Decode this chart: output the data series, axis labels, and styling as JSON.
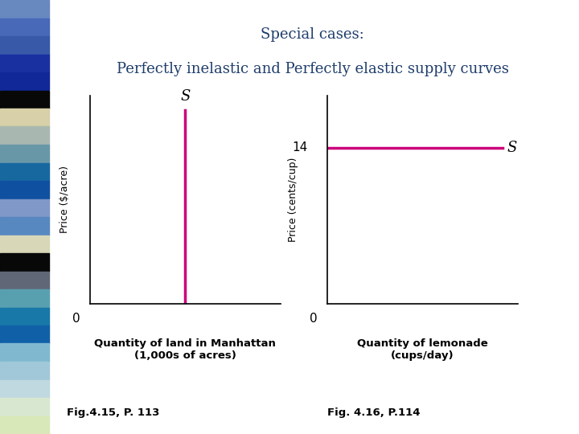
{
  "title_line1": "Special cases:",
  "title_line2": "Perfectly inelastic and Perfectly elastic supply curves",
  "title_color": "#1F3D6B",
  "title_fontsize": 13,
  "background_color": "#FFFFFF",
  "left_panel": {
    "ylabel": "Price ($/acre)",
    "xlabel_line1": "Quantity of land in Manhattan",
    "xlabel_line2": "(1,000s of acres)",
    "origin_label": "0",
    "s_label": "S",
    "curve_color": "#CC007A",
    "fig_caption": "Fig.4.15, P. 113"
  },
  "right_panel": {
    "ylabel": "Price (cents/cup)",
    "xlabel_line1": "Quantity of lemonade",
    "xlabel_line2": "(cups/day)",
    "origin_label": "0",
    "s_label": "S",
    "price_label": "14",
    "curve_color": "#CC007A",
    "fig_caption": "Fig. 4.16, P.114"
  },
  "stripe_colors": [
    "#6888C0",
    "#4868B8",
    "#3858A8",
    "#1830A0",
    "#102898",
    "#080808",
    "#D8D0A8",
    "#A8B8B0",
    "#6898A8",
    "#1868A0",
    "#1050A0",
    "#8098C8",
    "#5888C0",
    "#D8D8B8",
    "#080808",
    "#606878",
    "#58A0B0",
    "#1878A8",
    "#1060A8",
    "#80B8D0",
    "#A0C8D8",
    "#C0D8E0",
    "#D8E8D0",
    "#D8E8B8"
  ]
}
